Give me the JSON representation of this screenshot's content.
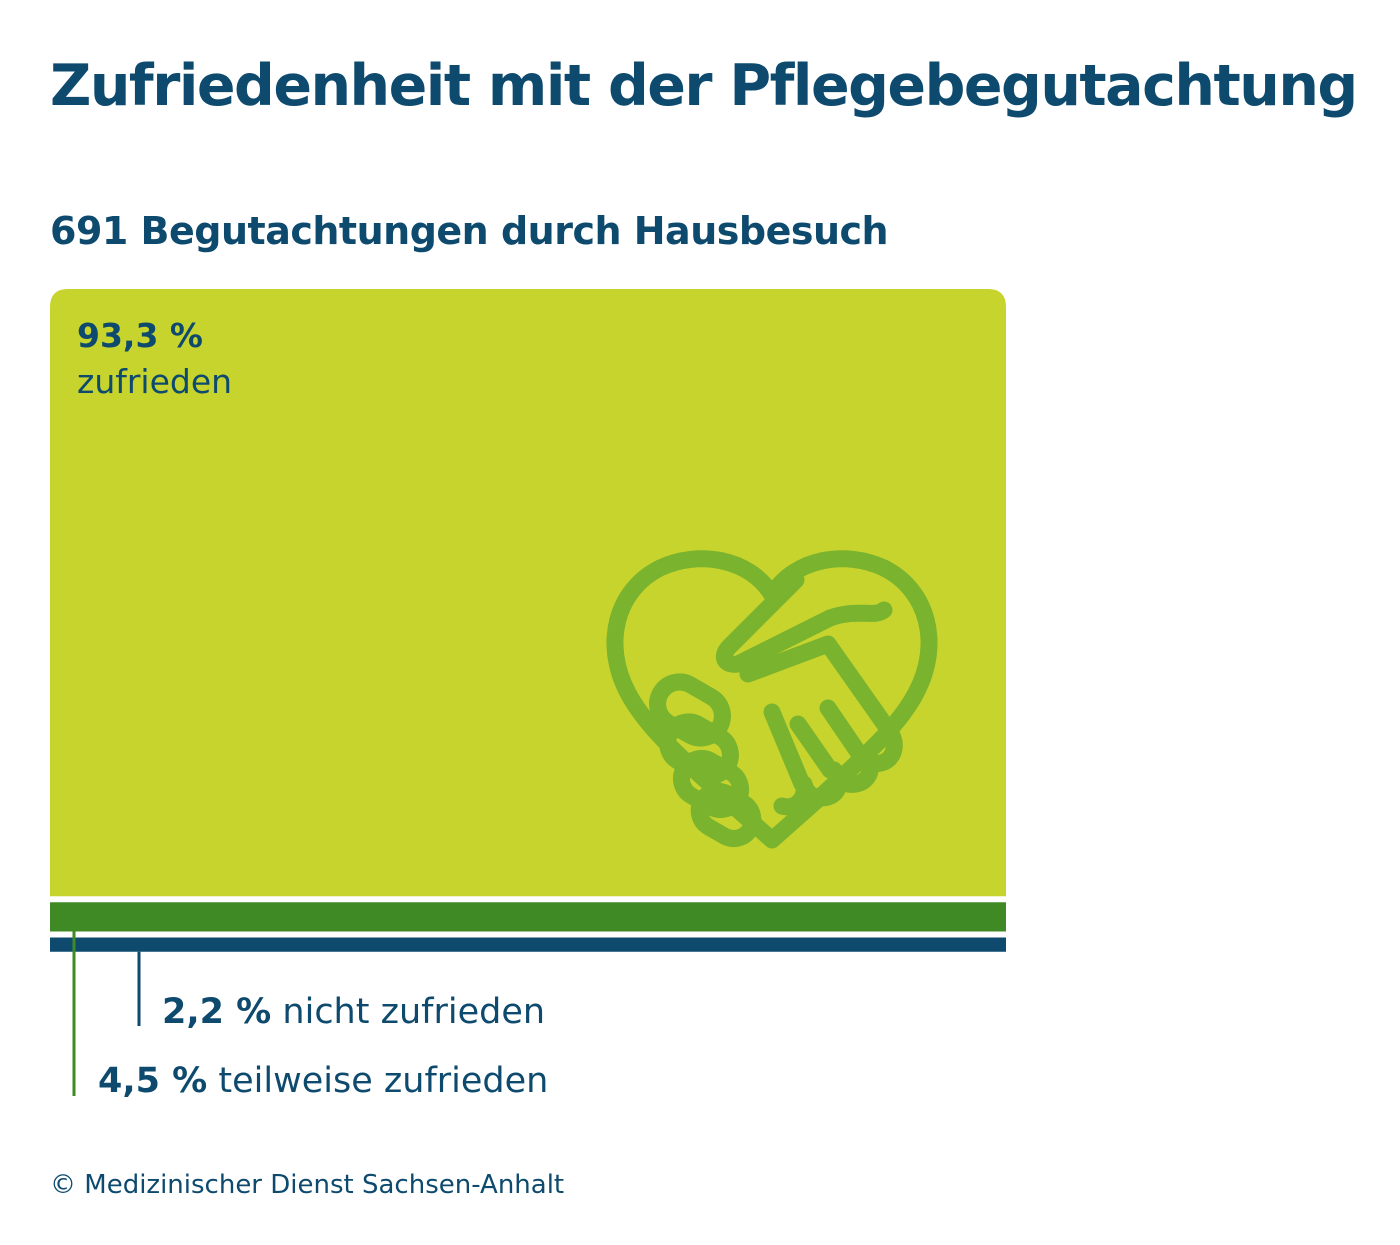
{
  "colors": {
    "text": "#0d4a6e",
    "satisfied": "#c8d42e",
    "partial": "#3f8a25",
    "unsatisfied": "#0d4a6e",
    "icon": "#7ab32e"
  },
  "title": "Zufriedenheit mit der Pflegebegutachtung",
  "subtitle": "691 Begutachtungen durch Hausbesuch",
  "icon": "heart-handshake-icon",
  "labels": {
    "satisfied_value": "93,3 %",
    "satisfied_text": "zufrieden",
    "unsatisfied_value": "2,2 %",
    "unsatisfied_text": "nicht zufrieden",
    "partial_value": "4,5 %",
    "partial_text": "teilweise zufrieden"
  },
  "copyright": "© Medizinischer Dienst Sachsen-Anhalt",
  "chart_data": {
    "type": "bar",
    "title": "Zufriedenheit mit der Pflegebegutachtung",
    "subtitle": "691 Begutachtungen durch Hausbesuch",
    "unit": "%",
    "categories": [
      "zufrieden",
      "teilweise zufrieden",
      "nicht zufrieden"
    ],
    "values": [
      93.3,
      4.5,
      2.2
    ],
    "stacked": true,
    "orientation": "vertical",
    "total_n": 691
  }
}
